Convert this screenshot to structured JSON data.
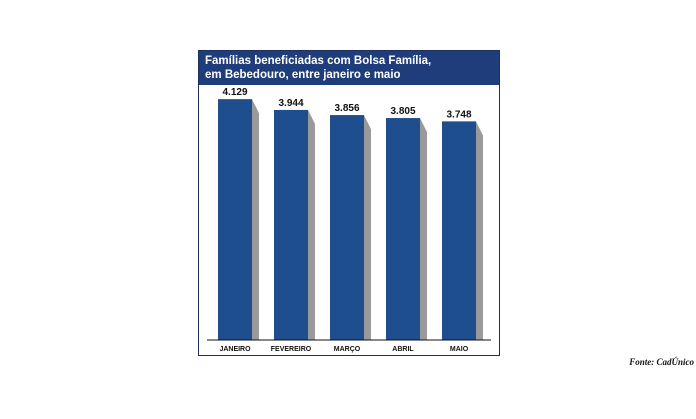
{
  "chart_data": {
    "type": "bar",
    "title": "Famílias beneficiadas com Bolsa Família,",
    "subtitle": "em Bebedouro, entre janeiro e maio",
    "categories": [
      "JANEIRO",
      "FEVEREIRO",
      "MARÇO",
      "ABRIL",
      "MAIO"
    ],
    "values": [
      4129,
      3944,
      3856,
      3805,
      3748
    ],
    "value_labels": [
      "4.129",
      "3.944",
      "3.856",
      "3.805",
      "3.748"
    ],
    "ylim": [
      0,
      4200
    ],
    "grid": false,
    "legend": "none",
    "source": "Fonte: CadÚnico"
  },
  "colors": {
    "bar": "#1f4e8f",
    "shadow": "#9a9a9a",
    "header": "#1f3d7a",
    "axis": "#111111"
  }
}
